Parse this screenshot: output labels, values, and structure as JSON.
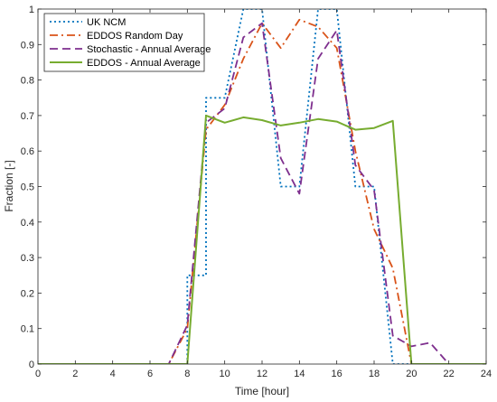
{
  "chart_data": {
    "type": "line",
    "title": "",
    "xlabel": "Time [hour]",
    "ylabel": "Fraction [-]",
    "xlim": [
      0,
      24
    ],
    "ylim": [
      0,
      1
    ],
    "xticks": [
      0,
      2,
      4,
      6,
      8,
      10,
      12,
      14,
      16,
      18,
      20,
      22,
      24
    ],
    "yticks": [
      0,
      0.1,
      0.2,
      0.3,
      0.4,
      0.5,
      0.6,
      0.7,
      0.8,
      0.9,
      1
    ],
    "ytick_labels": [
      "0",
      "0.1",
      "0.2",
      "0.3",
      "0.4",
      "0.5",
      "0.6",
      "0.7",
      "0.8",
      "0.9",
      "1"
    ],
    "grid": false,
    "legend_position": "top-left",
    "series": [
      {
        "name": "UK NCM",
        "color": "#0072BD",
        "style": "dotted",
        "x": [
          0,
          8,
          8,
          9,
          9,
          10,
          11,
          12,
          13,
          14,
          15,
          16,
          17,
          18,
          19,
          24
        ],
        "y": [
          0,
          0,
          0.25,
          0.25,
          0.75,
          0.75,
          1.0,
          1.0,
          0.5,
          0.5,
          1.0,
          1.0,
          0.5,
          0.5,
          0,
          0
        ]
      },
      {
        "name": "EDDOS Random Day",
        "color": "#D95319",
        "style": "dashdot",
        "x": [
          0,
          7,
          8,
          9,
          10,
          11,
          12,
          13,
          14,
          15,
          16,
          17,
          18,
          19,
          20,
          24
        ],
        "y": [
          0,
          0,
          0.1,
          0.66,
          0.73,
          0.86,
          0.96,
          0.89,
          0.97,
          0.95,
          0.89,
          0.6,
          0.38,
          0.27,
          0,
          0
        ]
      },
      {
        "name": "Stochastic - Annual Average",
        "color": "#7E2F8E",
        "style": "dashed",
        "x": [
          0,
          7,
          8,
          9,
          10,
          11,
          12,
          13,
          14,
          15,
          16,
          17,
          18,
          19,
          20,
          21,
          22,
          24
        ],
        "y": [
          0,
          0,
          0.11,
          0.68,
          0.72,
          0.92,
          0.96,
          0.58,
          0.48,
          0.86,
          0.94,
          0.56,
          0.49,
          0.08,
          0.05,
          0.06,
          0,
          0
        ]
      },
      {
        "name": "EDDOS - Annual Average",
        "color": "#77AC30",
        "style": "solid",
        "x": [
          0,
          8,
          9,
          10,
          11,
          12,
          13,
          14,
          15,
          16,
          17,
          18,
          19,
          20,
          24
        ],
        "y": [
          0,
          0,
          0.7,
          0.68,
          0.695,
          0.687,
          0.672,
          0.68,
          0.69,
          0.683,
          0.66,
          0.665,
          0.685,
          0,
          0
        ]
      }
    ]
  }
}
